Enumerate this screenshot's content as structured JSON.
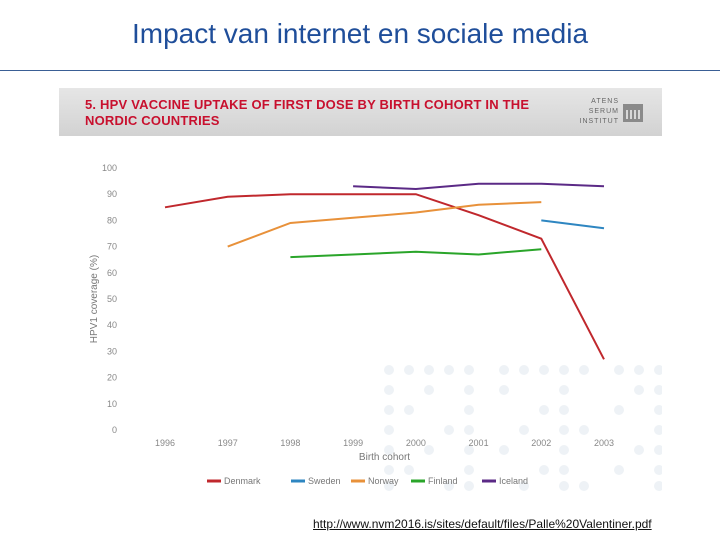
{
  "slide": {
    "title": "Impact van internet en sociale media",
    "source_url": "http://www.nvm2016.is/sites/default/files/Palle%20Valentiner.pdf"
  },
  "figure": {
    "title_line1": "5. HPV VACCINE UPTAKE OF FIRST DOSE BY BIRTH COHORT IN THE",
    "title_line2": "NORDIC COUNTRIES",
    "logo_line1": "ATENS",
    "logo_line2": "SERUM",
    "logo_line3": "INSTITUT",
    "title_color": "#c8102e"
  },
  "chart_data": {
    "type": "line",
    "xlabel": "Birth cohort",
    "ylabel": "HPV1 coverage (%)",
    "categories": [
      "1996",
      "1997",
      "1998",
      "1999",
      "2000",
      "2001",
      "2002",
      "2003"
    ],
    "ylim": [
      0,
      100
    ],
    "yticks": [
      0,
      10,
      20,
      30,
      40,
      50,
      60,
      70,
      80,
      90,
      100
    ],
    "grid": false,
    "legend_position": "bottom",
    "series": [
      {
        "name": "Denmark",
        "color": "#c0282d",
        "points": [
          [
            1996,
            85
          ],
          [
            1997,
            89
          ],
          [
            1998,
            90
          ],
          [
            1999,
            90
          ],
          [
            2000,
            90
          ],
          [
            2001,
            82
          ],
          [
            2002,
            73
          ],
          [
            2003,
            27
          ]
        ]
      },
      {
        "name": "Sweden",
        "color": "#2e86c1",
        "points": [
          [
            2002,
            80
          ],
          [
            2003,
            77
          ]
        ]
      },
      {
        "name": "Norway",
        "color": "#e8913a",
        "points": [
          [
            1997,
            70
          ],
          [
            1998,
            79
          ],
          [
            1999,
            81
          ],
          [
            2000,
            83
          ],
          [
            2001,
            86
          ],
          [
            2002,
            87
          ]
        ]
      },
      {
        "name": "Finland",
        "color": "#2aa52a",
        "points": [
          [
            1998,
            66
          ],
          [
            1999,
            67
          ],
          [
            2000,
            68
          ],
          [
            2001,
            67
          ],
          [
            2002,
            69
          ]
        ]
      },
      {
        "name": "Iceland",
        "color": "#5b2a86",
        "points": [
          [
            1999,
            93
          ],
          [
            2000,
            92
          ],
          [
            2001,
            94
          ],
          [
            2002,
            94
          ],
          [
            2003,
            93
          ]
        ]
      }
    ]
  }
}
